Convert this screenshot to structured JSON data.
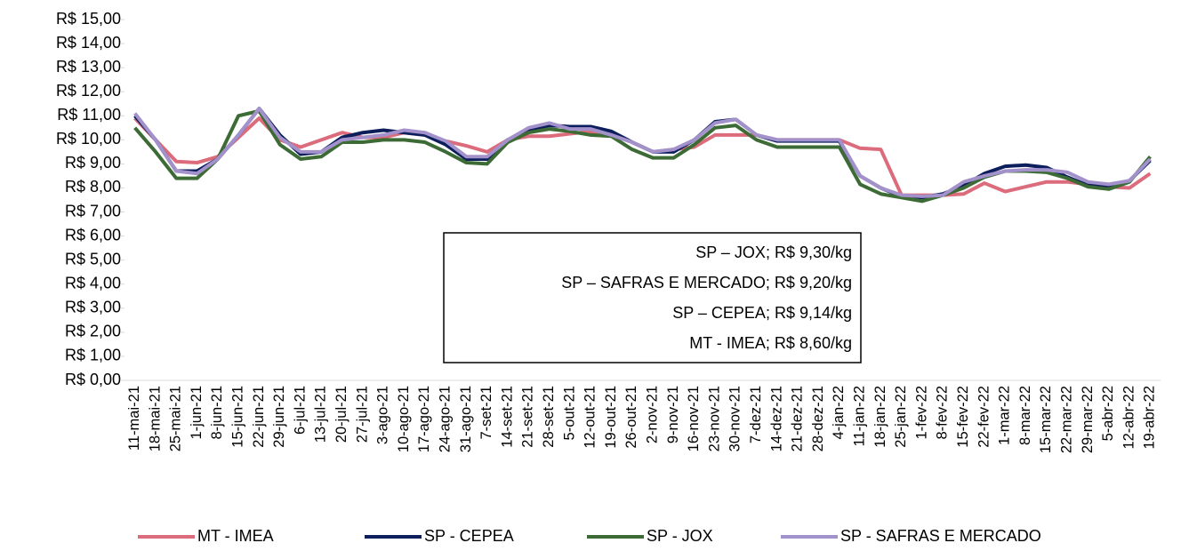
{
  "chart_data": {
    "type": "line",
    "categories": [
      "11-mai-21",
      "18-mai-21",
      "25-mai-21",
      "1-jun-21",
      "8-jun-21",
      "15-jun-21",
      "22-jun-21",
      "29-jun-21",
      "6-jul-21",
      "13-jul-21",
      "20-jul-21",
      "27-jul-21",
      "3-ago-21",
      "10-ago-21",
      "17-ago-21",
      "24-ago-21",
      "31-ago-21",
      "7-set-21",
      "14-set-21",
      "21-set-21",
      "28-set-21",
      "5-out-21",
      "12-out-21",
      "19-out-21",
      "26-out-21",
      "2-nov-21",
      "9-nov-21",
      "16-nov-21",
      "23-nov-21",
      "30-nov-21",
      "7-dez-21",
      "14-dez-21",
      "21-dez-21",
      "28-dez-21",
      "4-jan-22",
      "11-jan-22",
      "18-jan-22",
      "25-jan-22",
      "1-fev-22",
      "8-fev-22",
      "15-fev-22",
      "22-fev-22",
      "1-mar-22",
      "8-mar-22",
      "15-mar-22",
      "22-mar-22",
      "29-mar-22",
      "5-abr-22",
      "12-abr-22",
      "19-abr-22"
    ],
    "series": [
      {
        "name": "MT - IMEA",
        "color": "#dc6b7b",
        "values": [
          10.9,
          10.0,
          9.1,
          9.05,
          9.3,
          10.1,
          10.9,
          10.0,
          9.7,
          10.0,
          10.3,
          10.1,
          10.1,
          10.3,
          10.2,
          9.95,
          9.75,
          9.5,
          10.0,
          10.15,
          10.15,
          10.25,
          10.35,
          10.2,
          9.9,
          9.5,
          9.6,
          9.7,
          10.2,
          10.2,
          10.2,
          10.0,
          10.0,
          10.0,
          10.0,
          9.65,
          9.6,
          7.7,
          7.7,
          7.7,
          7.75,
          8.2,
          7.85,
          8.05,
          8.25,
          8.25,
          8.15,
          8.05,
          8.0,
          8.6
        ]
      },
      {
        "name": "SP - CEPEA",
        "color": "#0c1f5c",
        "values": [
          11.0,
          10.0,
          8.7,
          8.7,
          9.2,
          10.2,
          11.3,
          10.2,
          9.4,
          9.5,
          10.1,
          10.3,
          10.4,
          10.3,
          10.2,
          9.8,
          9.2,
          9.2,
          10.0,
          10.4,
          10.6,
          10.55,
          10.55,
          10.35,
          9.9,
          9.5,
          9.5,
          10.0,
          10.75,
          10.85,
          10.2,
          9.95,
          9.95,
          9.95,
          9.95,
          8.5,
          8.0,
          7.65,
          7.6,
          7.75,
          8.1,
          8.6,
          8.9,
          8.95,
          8.85,
          8.45,
          8.1,
          8.1,
          8.3,
          9.14
        ]
      },
      {
        "name": "SP - JOX",
        "color": "#3d6b35",
        "values": [
          10.5,
          9.5,
          8.4,
          8.4,
          9.2,
          11.0,
          11.2,
          9.8,
          9.2,
          9.3,
          9.9,
          9.9,
          10.0,
          10.0,
          9.9,
          9.5,
          9.05,
          9.0,
          9.9,
          10.3,
          10.45,
          10.35,
          10.2,
          10.15,
          9.6,
          9.25,
          9.25,
          9.8,
          10.5,
          10.6,
          10.0,
          9.7,
          9.7,
          9.7,
          9.7,
          8.15,
          7.75,
          7.6,
          7.45,
          7.7,
          8.0,
          8.45,
          8.7,
          8.7,
          8.65,
          8.4,
          8.05,
          7.95,
          8.25,
          9.3
        ]
      },
      {
        "name": "SP - SAFRAS E MERCADO",
        "color": "#a391cc",
        "values": [
          11.1,
          10.0,
          8.7,
          8.6,
          9.2,
          10.2,
          11.3,
          10.1,
          9.5,
          9.5,
          10.0,
          10.1,
          10.2,
          10.4,
          10.3,
          9.95,
          9.3,
          9.3,
          10.0,
          10.5,
          10.7,
          10.45,
          10.45,
          10.2,
          9.9,
          9.5,
          9.6,
          10.0,
          10.7,
          10.85,
          10.2,
          10.0,
          10.0,
          10.0,
          10.0,
          8.5,
          8.0,
          7.7,
          7.65,
          7.7,
          8.25,
          8.5,
          8.7,
          8.75,
          8.75,
          8.65,
          8.25,
          8.15,
          8.3,
          9.2
        ]
      }
    ],
    "ylim": [
      0,
      15
    ],
    "yticks": [
      {
        "value": 0,
        "label": "R$ 0,00"
      },
      {
        "value": 1,
        "label": "R$ 1,00"
      },
      {
        "value": 2,
        "label": "R$ 2,00"
      },
      {
        "value": 3,
        "label": "R$ 3,00"
      },
      {
        "value": 4,
        "label": "R$ 4,00"
      },
      {
        "value": 5,
        "label": "R$ 5,00"
      },
      {
        "value": 6,
        "label": "R$ 6,00"
      },
      {
        "value": 7,
        "label": "R$ 7,00"
      },
      {
        "value": 8,
        "label": "R$ 8,00"
      },
      {
        "value": 9,
        "label": "R$ 9,00"
      },
      {
        "value": 10,
        "label": "R$ 10,00"
      },
      {
        "value": 11,
        "label": "R$ 11,00"
      },
      {
        "value": 12,
        "label": "R$ 12,00"
      },
      {
        "value": 13,
        "label": "R$ 13,00"
      },
      {
        "value": 14,
        "label": "R$ 14,00"
      },
      {
        "value": 15,
        "label": "R$ 15,00"
      }
    ],
    "annotations": [
      "SP – JOX; R$ 9,30/kg",
      "SP – SAFRAS E MERCADO; R$ 9,20/kg",
      "SP – CEPEA; R$ 9,14/kg",
      "MT - IMEA; R$ 8,60/kg"
    ],
    "legend": "bottom"
  }
}
